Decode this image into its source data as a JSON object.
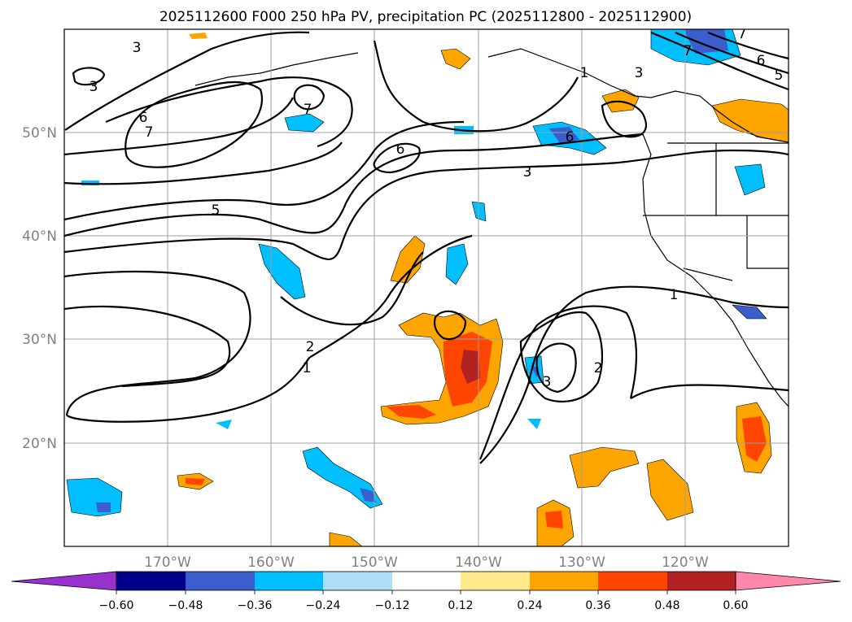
{
  "title": "2025112600 F000 250 hPa PV, precipitation PC (2025112800 - 2025112900)",
  "map": {
    "lon_range": [
      -180,
      -110
    ],
    "lat_range": [
      10,
      60
    ],
    "lat_labels": [
      "20°N",
      "30°N",
      "40°N",
      "50°N"
    ],
    "lon_labels": [
      "170°W",
      "160°W",
      "150°W",
      "140°W",
      "130°W",
      "120°W"
    ],
    "contour_labels": [
      "3",
      "3",
      "6",
      "7",
      "7",
      "6",
      "5",
      "7",
      "6",
      "3",
      "1",
      "3",
      "7",
      "6",
      "5",
      "2",
      "1",
      "3",
      "2",
      "1"
    ]
  },
  "colorbar": {
    "ticks": [
      "−0.60",
      "−0.48",
      "−0.36",
      "−0.24",
      "−0.12",
      "0.12",
      "0.24",
      "0.36",
      "0.48",
      "0.60"
    ],
    "colors": [
      "#9932CC",
      "#00008B",
      "#3A5FCD",
      "#00BFFF",
      "#ADE0F8",
      "#FFFFFF",
      "#FFE98A",
      "#FFA500",
      "#FF4500",
      "#B22222",
      "#FF88AA"
    ]
  },
  "colors": {
    "pos_low": "#FFA500",
    "pos_mid": "#FF4500",
    "pos_high": "#B22222",
    "neg_low": "#00BFFF",
    "neg_mid": "#3A5FCD"
  }
}
